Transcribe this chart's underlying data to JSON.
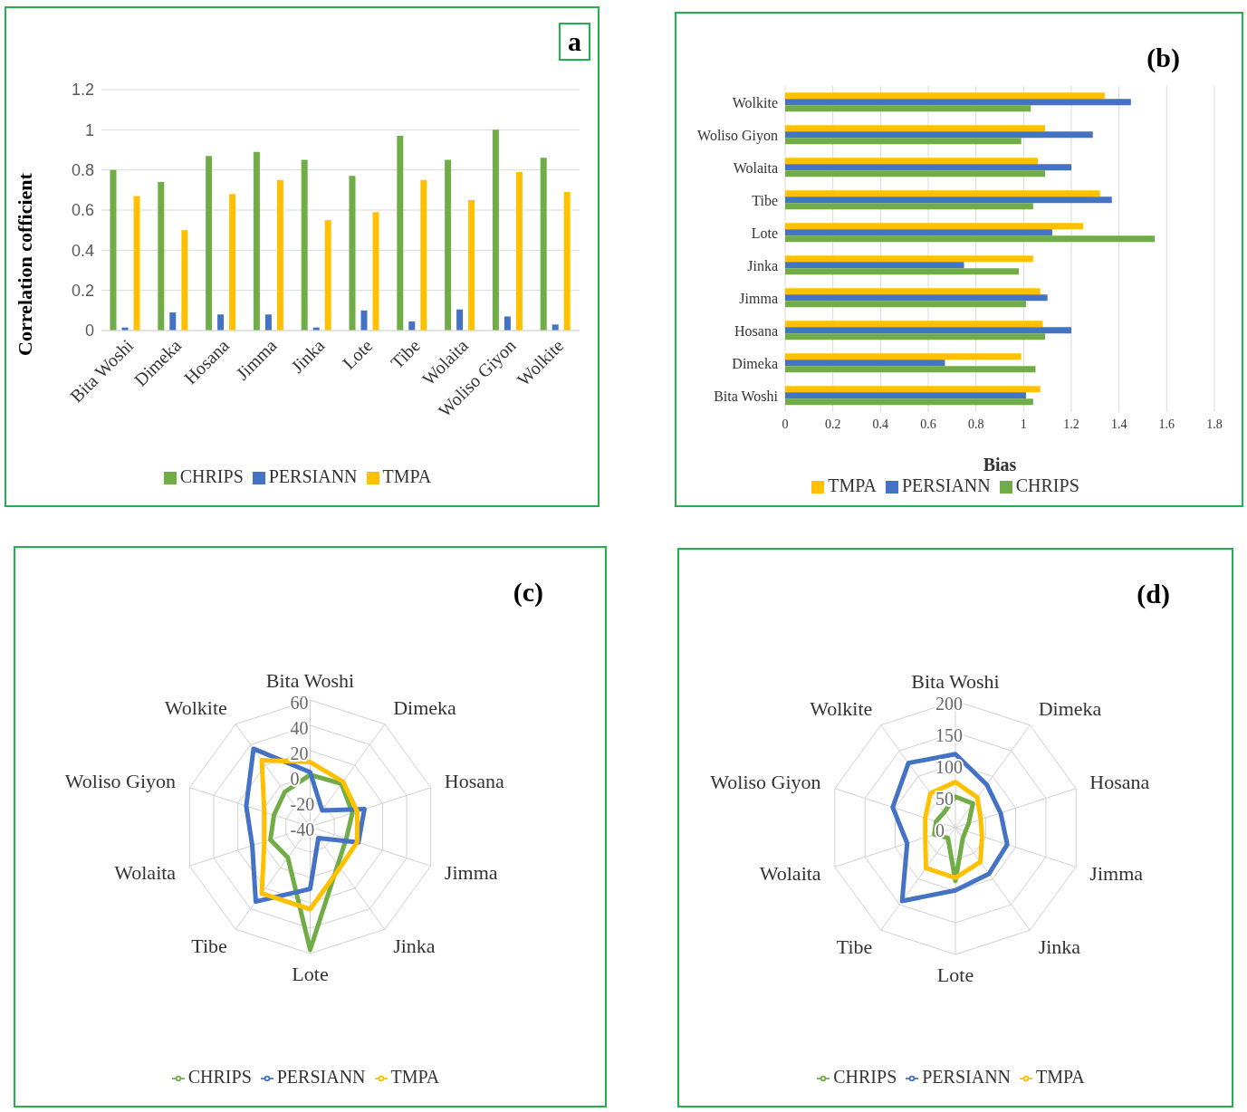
{
  "chart_data": [
    {
      "type": "bar",
      "title": "a",
      "ylabel": "Correlation cofficient",
      "categories": [
        "Bita Woshi",
        "Dimeka",
        "Hosana",
        "Jimma",
        "Jinka",
        "Lote",
        "Tibe",
        "Wolaita",
        "Woliso Giyon",
        "Wolkite"
      ],
      "series": [
        {
          "name": "CHRIPS",
          "color": "#70ad47",
          "values": [
            0.8,
            0.74,
            0.87,
            0.89,
            0.85,
            0.77,
            0.97,
            0.85,
            1.0,
            0.86
          ]
        },
        {
          "name": "PERSIANN",
          "color": "#4472c4",
          "values": [
            0.015,
            0.09,
            0.08,
            0.08,
            0.015,
            0.1,
            0.045,
            0.105,
            0.07,
            0.03
          ]
        },
        {
          "name": "TMPA",
          "color": "#ffc000",
          "values": [
            0.67,
            0.5,
            0.68,
            0.75,
            0.55,
            0.59,
            0.75,
            0.65,
            0.79,
            0.69
          ]
        }
      ],
      "ylim": [
        0,
        1.2
      ],
      "yticks": [
        0,
        0.2,
        0.4,
        0.6,
        0.8,
        1,
        1.2
      ],
      "grid": "y",
      "legend": "bottom"
    },
    {
      "type": "bar",
      "orientation": "horizontal",
      "title": "(b)",
      "xlabel": "Bias",
      "categories": [
        "Wolkite",
        "Woliso Giyon",
        "Wolaita",
        "Tibe",
        "Lote",
        "Jinka",
        "Jimma",
        "Hosana",
        "Dimeka",
        "Bita Woshi"
      ],
      "series": [
        {
          "name": "TMPA",
          "color": "#ffc000",
          "values": [
            1.34,
            1.09,
            1.06,
            1.32,
            1.25,
            1.04,
            1.07,
            1.08,
            0.99,
            1.07
          ]
        },
        {
          "name": "PERSIANN",
          "color": "#4472c4",
          "values": [
            1.45,
            1.29,
            1.2,
            1.37,
            1.12,
            0.75,
            1.1,
            1.2,
            0.67,
            1.01
          ]
        },
        {
          "name": "CHRIPS",
          "color": "#70ad47",
          "values": [
            1.03,
            0.99,
            1.09,
            1.04,
            1.55,
            0.98,
            1.01,
            1.09,
            1.05,
            1.04
          ]
        }
      ],
      "xlim": [
        0,
        1.8
      ],
      "xticks": [
        0,
        0.2,
        0.4,
        0.6,
        0.8,
        1,
        1.2,
        1.4,
        1.6,
        1.8
      ],
      "grid": "x",
      "legend": "bottom"
    },
    {
      "type": "radar",
      "title": "(c)",
      "categories": [
        "Bita Woshi",
        "Dimeka",
        "Hosana",
        "Jimma",
        "Jinka",
        "Lote",
        "Tibe",
        "Wolaita",
        "Woliso Giyon",
        "Wolkite"
      ],
      "series": [
        {
          "name": "CHRIPS",
          "color": "#70ad47",
          "values": [
            1,
            2,
            -5,
            -10,
            -3,
            57,
            -10,
            -7,
            -10,
            -6
          ]
        },
        {
          "name": "PERSIANN",
          "color": "#4472c4",
          "values": [
            3,
            -24,
            5,
            0,
            -29,
            9,
            33,
            8,
            13,
            36
          ]
        },
        {
          "name": "TMPA",
          "color": "#ffc000",
          "values": [
            11,
            4,
            -1,
            -1,
            0,
            25,
            25,
            -2,
            -2,
            25
          ]
        }
      ],
      "ylim": [
        -40,
        60
      ],
      "yticks": [
        -40,
        -20,
        0,
        20,
        40,
        60
      ],
      "grid": true,
      "legend": "bottom"
    },
    {
      "type": "radar",
      "title": "(d)",
      "categories": [
        "Bita Woshi",
        "Dimeka",
        "Hosana",
        "Jimma",
        "Jinka",
        "Lote",
        "Tibe",
        "Wolaita",
        "Woliso Giyon",
        "Wolkite"
      ],
      "series": [
        {
          "name": "CHRIPS",
          "color": "#70ad47",
          "values": [
            49,
            47,
            22,
            17,
            20,
            84,
            20,
            35,
            32,
            30
          ]
        },
        {
          "name": "PERSIANN",
          "color": "#4472c4",
          "values": [
            116,
            84,
            75,
            86,
            90,
            99,
            143,
            80,
            104,
            126
          ]
        },
        {
          "name": "TMPA",
          "color": "#ffc000",
          "values": [
            72,
            59,
            42,
            44,
            67,
            79,
            79,
            50,
            50,
            67
          ]
        }
      ],
      "ylim": [
        0,
        200
      ],
      "yticks": [
        0,
        50,
        100,
        150,
        200
      ],
      "grid": true,
      "legend": "bottom"
    }
  ]
}
